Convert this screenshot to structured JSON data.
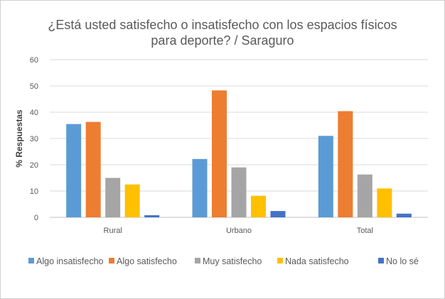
{
  "chart_data": {
    "type": "bar",
    "title_line1": "¿Está usted satisfecho o insatisfecho con los espacios físicos",
    "title_line2": "para deporte? / Saraguro",
    "xlabel": "",
    "ylabel": "% Respuestas",
    "ylim": [
      0,
      60
    ],
    "yticks": [
      "0",
      "10",
      "20",
      "30",
      "40",
      "50",
      "60"
    ],
    "grid": true,
    "legend": "bottom",
    "categories": [
      "Rural",
      "Urbano",
      "Total"
    ],
    "series": [
      {
        "name": "Algo insatisfecho",
        "color": "#5b9bd5",
        "values": [
          35.5,
          22.2,
          31.0
        ]
      },
      {
        "name": "Algo satisfecho",
        "color": "#ed7d31",
        "values": [
          36.3,
          48.3,
          40.4
        ]
      },
      {
        "name": "Muy satisfecho",
        "color": "#a5a5a5",
        "values": [
          15.0,
          19.0,
          16.3
        ]
      },
      {
        "name": "Nada satisfecho",
        "color": "#ffc000",
        "values": [
          12.5,
          8.2,
          11.0
        ]
      },
      {
        "name": "No lo sé",
        "color": "#4472c4",
        "values": [
          0.8,
          2.4,
          1.4
        ]
      }
    ]
  }
}
